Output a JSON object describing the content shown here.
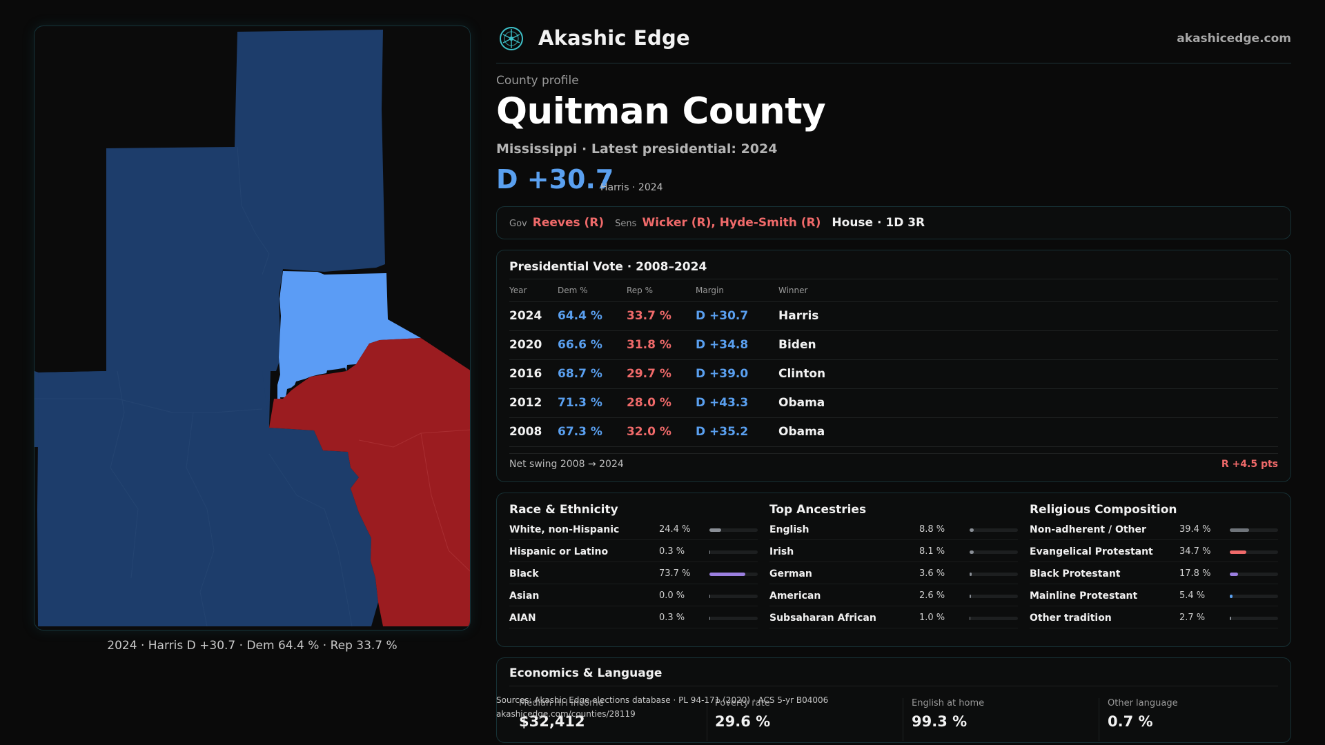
{
  "header": {
    "brand": "Akashic Edge",
    "site": "akashicedge.com",
    "logo_icon": "akashic-logo-icon"
  },
  "profile": {
    "eyebrow": "County profile",
    "title": "Quitman County",
    "subtitle": "Mississippi · Latest presidential: 2024",
    "margin": "D +30.7",
    "margin_note": "Harris · 2024"
  },
  "officials": {
    "gov_label": "Gov",
    "gov": "Reeves (R)",
    "sens_label": "Sens",
    "sens": "Wicker (R), Hyde-Smith (R)",
    "house": "House · 1D 3R"
  },
  "presidential": {
    "title": "Presidential Vote · 2008–2024",
    "headers": {
      "year": "Year",
      "dem": "Dem %",
      "rep": "Rep %",
      "margin": "Margin",
      "winner": "Winner"
    },
    "rows": [
      {
        "year": "2024",
        "dem": "64.4 %",
        "rep": "33.7 %",
        "margin": "D +30.7",
        "winner": "Harris"
      },
      {
        "year": "2020",
        "dem": "66.6 %",
        "rep": "31.8 %",
        "margin": "D +34.8",
        "winner": "Biden"
      },
      {
        "year": "2016",
        "dem": "68.7 %",
        "rep": "29.7 %",
        "margin": "D +39.0",
        "winner": "Clinton"
      },
      {
        "year": "2012",
        "dem": "71.3 %",
        "rep": "28.0 %",
        "margin": "D +43.3",
        "winner": "Obama"
      },
      {
        "year": "2008",
        "dem": "67.3 %",
        "rep": "32.0 %",
        "margin": "D +35.2",
        "winner": "Obama"
      }
    ],
    "swing_label": "Net swing 2008 → 2024",
    "swing_value": "R +4.5 pts"
  },
  "race": {
    "title": "Race & Ethnicity",
    "rows": [
      {
        "name": "White, non-Hispanic",
        "value": "24.4 %",
        "share": 24.4,
        "color": "#8a8f96"
      },
      {
        "name": "Hispanic or Latino",
        "value": "0.3 %",
        "share": 0.3,
        "color": "#8a8f96"
      },
      {
        "name": "Black",
        "value": "73.7 %",
        "share": 73.7,
        "color": "#9b7fe0"
      },
      {
        "name": "Asian",
        "value": "0.0 %",
        "share": 0.0,
        "color": "#8a8f96"
      },
      {
        "name": "AIAN",
        "value": "0.3 %",
        "share": 0.3,
        "color": "#8a8f96"
      }
    ]
  },
  "ancestry": {
    "title": "Top Ancestries",
    "rows": [
      {
        "name": "English",
        "value": "8.8 %",
        "share": 8.8,
        "color": "#8a8f96"
      },
      {
        "name": "Irish",
        "value": "8.1 %",
        "share": 8.1,
        "color": "#8a8f96"
      },
      {
        "name": "German",
        "value": "3.6 %",
        "share": 3.6,
        "color": "#8a8f96"
      },
      {
        "name": "American",
        "value": "2.6 %",
        "share": 2.6,
        "color": "#8a8f96"
      },
      {
        "name": "Subsaharan African",
        "value": "1.0 %",
        "share": 1.0,
        "color": "#8a8f96"
      }
    ]
  },
  "religion": {
    "title": "Religious Composition",
    "rows": [
      {
        "name": "Non-adherent / Other",
        "value": "39.4 %",
        "share": 39.4,
        "color": "#6f747a"
      },
      {
        "name": "Evangelical Protestant",
        "value": "34.7 %",
        "share": 34.7,
        "color": "#f06a6a"
      },
      {
        "name": "Black Protestant",
        "value": "17.8 %",
        "share": 17.8,
        "color": "#9b7fe0"
      },
      {
        "name": "Mainline Protestant",
        "value": "5.4 %",
        "share": 5.4,
        "color": "#5aa0f0"
      },
      {
        "name": "Other tradition",
        "value": "2.7 %",
        "share": 2.7,
        "color": "#8a8f96"
      }
    ]
  },
  "economics": {
    "title": "Economics & Language",
    "cells": [
      {
        "label": "Median HH income",
        "value": "$32,412"
      },
      {
        "label": "Poverty rate",
        "value": "29.6 %"
      },
      {
        "label": "English at home",
        "value": "99.3 %"
      },
      {
        "label": "Other language",
        "value": "0.7 %"
      }
    ]
  },
  "sources": {
    "line1": "Sources: Akashic Edge elections database · PL 94-171 (2020) · ACS 5-yr B04006",
    "line2": "akashicedge.com/counties/28119"
  },
  "map": {
    "caption": "2024 · Harris D +30.7 · Dem 64.4 % · Rep 33.7 %",
    "colors": {
      "dem_strong": "#1d3d6b",
      "dem_lean": "#5b9cf5",
      "rep_strong": "#9b1c20"
    }
  }
}
